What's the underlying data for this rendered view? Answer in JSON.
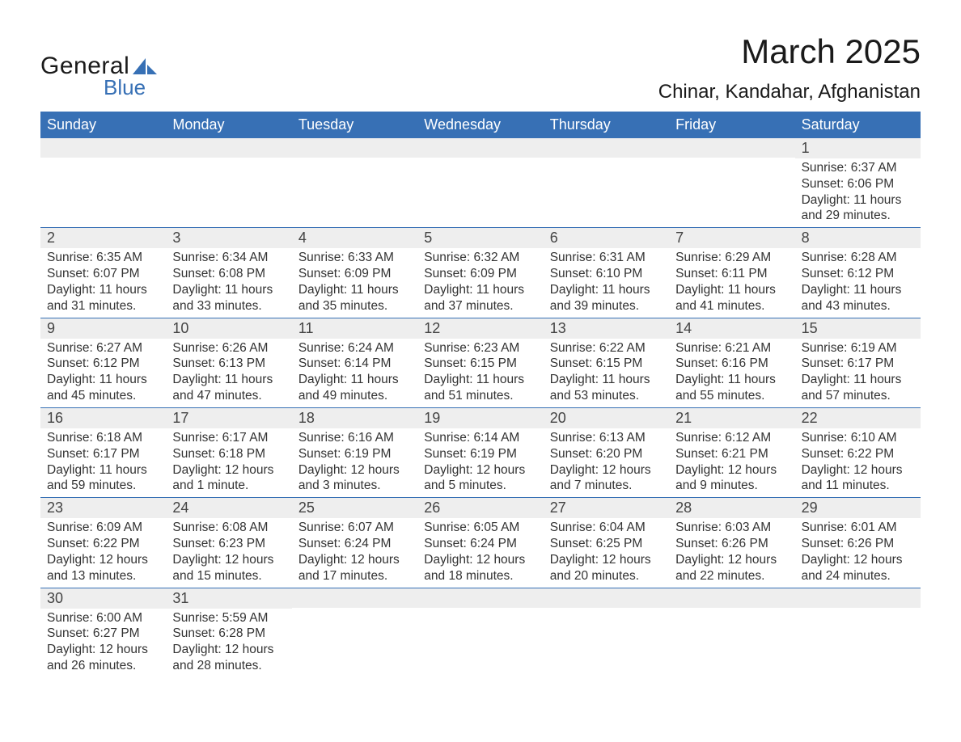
{
  "brand": {
    "word1": "General",
    "word2": "Blue",
    "logo_color": "#3770b5"
  },
  "header": {
    "title": "March 2025",
    "location": "Chinar, Kandahar, Afghanistan"
  },
  "colors": {
    "header_bg": "#3770b5",
    "header_text": "#ffffff",
    "band_bg": "#eeeeee",
    "row_divider": "#3770b5",
    "body_text": "#333333",
    "page_bg": "#ffffff"
  },
  "calendar": {
    "type": "table",
    "weekdays": [
      "Sunday",
      "Monday",
      "Tuesday",
      "Wednesday",
      "Thursday",
      "Friday",
      "Saturday"
    ],
    "first_weekday_index": 6,
    "num_days": 31,
    "days": [
      {
        "n": 1,
        "sunrise": "6:37 AM",
        "sunset": "6:06 PM",
        "daylight": "11 hours and 29 minutes."
      },
      {
        "n": 2,
        "sunrise": "6:35 AM",
        "sunset": "6:07 PM",
        "daylight": "11 hours and 31 minutes."
      },
      {
        "n": 3,
        "sunrise": "6:34 AM",
        "sunset": "6:08 PM",
        "daylight": "11 hours and 33 minutes."
      },
      {
        "n": 4,
        "sunrise": "6:33 AM",
        "sunset": "6:09 PM",
        "daylight": "11 hours and 35 minutes."
      },
      {
        "n": 5,
        "sunrise": "6:32 AM",
        "sunset": "6:09 PM",
        "daylight": "11 hours and 37 minutes."
      },
      {
        "n": 6,
        "sunrise": "6:31 AM",
        "sunset": "6:10 PM",
        "daylight": "11 hours and 39 minutes."
      },
      {
        "n": 7,
        "sunrise": "6:29 AM",
        "sunset": "6:11 PM",
        "daylight": "11 hours and 41 minutes."
      },
      {
        "n": 8,
        "sunrise": "6:28 AM",
        "sunset": "6:12 PM",
        "daylight": "11 hours and 43 minutes."
      },
      {
        "n": 9,
        "sunrise": "6:27 AM",
        "sunset": "6:12 PM",
        "daylight": "11 hours and 45 minutes."
      },
      {
        "n": 10,
        "sunrise": "6:26 AM",
        "sunset": "6:13 PM",
        "daylight": "11 hours and 47 minutes."
      },
      {
        "n": 11,
        "sunrise": "6:24 AM",
        "sunset": "6:14 PM",
        "daylight": "11 hours and 49 minutes."
      },
      {
        "n": 12,
        "sunrise": "6:23 AM",
        "sunset": "6:15 PM",
        "daylight": "11 hours and 51 minutes."
      },
      {
        "n": 13,
        "sunrise": "6:22 AM",
        "sunset": "6:15 PM",
        "daylight": "11 hours and 53 minutes."
      },
      {
        "n": 14,
        "sunrise": "6:21 AM",
        "sunset": "6:16 PM",
        "daylight": "11 hours and 55 minutes."
      },
      {
        "n": 15,
        "sunrise": "6:19 AM",
        "sunset": "6:17 PM",
        "daylight": "11 hours and 57 minutes."
      },
      {
        "n": 16,
        "sunrise": "6:18 AM",
        "sunset": "6:17 PM",
        "daylight": "11 hours and 59 minutes."
      },
      {
        "n": 17,
        "sunrise": "6:17 AM",
        "sunset": "6:18 PM",
        "daylight": "12 hours and 1 minute."
      },
      {
        "n": 18,
        "sunrise": "6:16 AM",
        "sunset": "6:19 PM",
        "daylight": "12 hours and 3 minutes."
      },
      {
        "n": 19,
        "sunrise": "6:14 AM",
        "sunset": "6:19 PM",
        "daylight": "12 hours and 5 minutes."
      },
      {
        "n": 20,
        "sunrise": "6:13 AM",
        "sunset": "6:20 PM",
        "daylight": "12 hours and 7 minutes."
      },
      {
        "n": 21,
        "sunrise": "6:12 AM",
        "sunset": "6:21 PM",
        "daylight": "12 hours and 9 minutes."
      },
      {
        "n": 22,
        "sunrise": "6:10 AM",
        "sunset": "6:22 PM",
        "daylight": "12 hours and 11 minutes."
      },
      {
        "n": 23,
        "sunrise": "6:09 AM",
        "sunset": "6:22 PM",
        "daylight": "12 hours and 13 minutes."
      },
      {
        "n": 24,
        "sunrise": "6:08 AM",
        "sunset": "6:23 PM",
        "daylight": "12 hours and 15 minutes."
      },
      {
        "n": 25,
        "sunrise": "6:07 AM",
        "sunset": "6:24 PM",
        "daylight": "12 hours and 17 minutes."
      },
      {
        "n": 26,
        "sunrise": "6:05 AM",
        "sunset": "6:24 PM",
        "daylight": "12 hours and 18 minutes."
      },
      {
        "n": 27,
        "sunrise": "6:04 AM",
        "sunset": "6:25 PM",
        "daylight": "12 hours and 20 minutes."
      },
      {
        "n": 28,
        "sunrise": "6:03 AM",
        "sunset": "6:26 PM",
        "daylight": "12 hours and 22 minutes."
      },
      {
        "n": 29,
        "sunrise": "6:01 AM",
        "sunset": "6:26 PM",
        "daylight": "12 hours and 24 minutes."
      },
      {
        "n": 30,
        "sunrise": "6:00 AM",
        "sunset": "6:27 PM",
        "daylight": "12 hours and 26 minutes."
      },
      {
        "n": 31,
        "sunrise": "5:59 AM",
        "sunset": "6:28 PM",
        "daylight": "12 hours and 28 minutes."
      }
    ],
    "labels": {
      "sunrise": "Sunrise:",
      "sunset": "Sunset:",
      "daylight": "Daylight:"
    }
  }
}
